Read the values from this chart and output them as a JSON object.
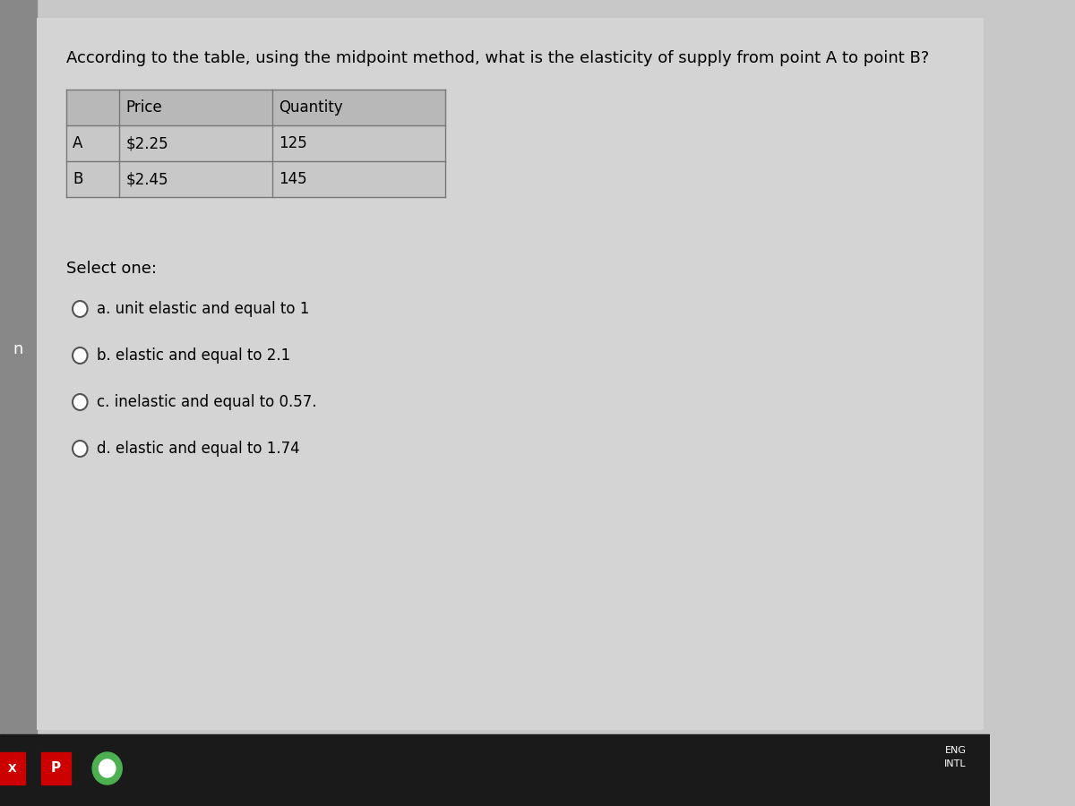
{
  "title": "According to the table, using the midpoint method, what is the elasticity of supply from point A to point B?",
  "table_headers": [
    "",
    "Price",
    "Quantity"
  ],
  "table_rows": [
    [
      "A",
      "$2.25",
      "125"
    ],
    [
      "B",
      "$2.45",
      "145"
    ]
  ],
  "select_one_label": "Select one:",
  "options": [
    "a. unit elastic and equal to 1",
    "b. elastic and equal to 2.1",
    "c. inelastic and equal to 0.57.",
    "d. elastic and equal to 1.74"
  ],
  "bg_color": "#c8c8c8",
  "card_color": "#d4d4d4",
  "taskbar_color": "#1a1a1a",
  "title_fontsize": 13,
  "option_fontsize": 12,
  "table_fontsize": 12
}
